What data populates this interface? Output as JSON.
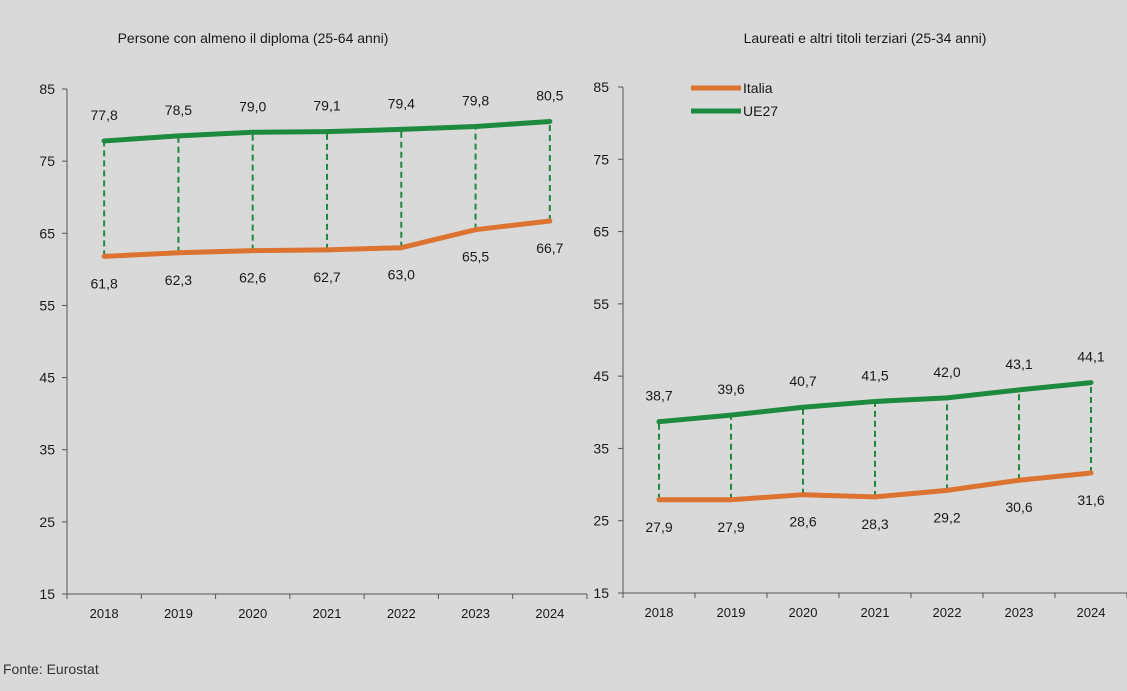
{
  "source": "Fonte: Eurostat",
  "colors": {
    "italia": "#dd7331",
    "ue27": "#1e8a3f",
    "axis": "#555555",
    "background": "#d9d9da"
  },
  "chart_data": [
    {
      "type": "line",
      "title": "Persone con almeno il diploma (25-64 anni)",
      "xlabel": "",
      "ylabel": "",
      "categories": [
        "2018",
        "2019",
        "2020",
        "2021",
        "2022",
        "2023",
        "2024"
      ],
      "yticks": [
        "15",
        "25",
        "35",
        "45",
        "55",
        "65",
        "75",
        "85"
      ],
      "ylim": [
        15,
        85
      ],
      "legend": null,
      "series": [
        {
          "name": "Italia",
          "color": "#dd7331",
          "values": [
            61.8,
            62.3,
            62.6,
            62.7,
            63.0,
            65.5,
            66.7
          ],
          "labels": [
            "61,8",
            "62,3",
            "62,6",
            "62,7",
            "63,0",
            "65,5",
            "66,7"
          ]
        },
        {
          "name": "UE27",
          "color": "#1e8a3f",
          "values": [
            77.8,
            78.5,
            79.0,
            79.1,
            79.4,
            79.8,
            80.5
          ],
          "labels": [
            "77,8",
            "78,5",
            "79,0",
            "79,1",
            "79,4",
            "79,8",
            "80,5"
          ]
        }
      ]
    },
    {
      "type": "line",
      "title": "Laureati e altri titoli terziari (25-34 anni)",
      "xlabel": "",
      "ylabel": "",
      "categories": [
        "2018",
        "2019",
        "2020",
        "2021",
        "2022",
        "2023",
        "2024"
      ],
      "yticks": [
        "15",
        "25",
        "35",
        "45",
        "55",
        "65",
        "75",
        "85"
      ],
      "ylim": [
        15,
        85
      ],
      "legend": "top-left",
      "series": [
        {
          "name": "Italia",
          "color": "#dd7331",
          "values": [
            27.9,
            27.9,
            28.6,
            28.3,
            29.2,
            30.6,
            31.6
          ],
          "labels": [
            "27,9",
            "27,9",
            "28,6",
            "28,3",
            "29,2",
            "30,6",
            "31,6"
          ]
        },
        {
          "name": "UE27",
          "color": "#1e8a3f",
          "values": [
            38.7,
            39.6,
            40.7,
            41.5,
            42.0,
            43.1,
            44.1
          ],
          "labels": [
            "38,7",
            "39,6",
            "40,7",
            "41,5",
            "42,0",
            "43,1",
            "44,1"
          ]
        }
      ]
    }
  ]
}
